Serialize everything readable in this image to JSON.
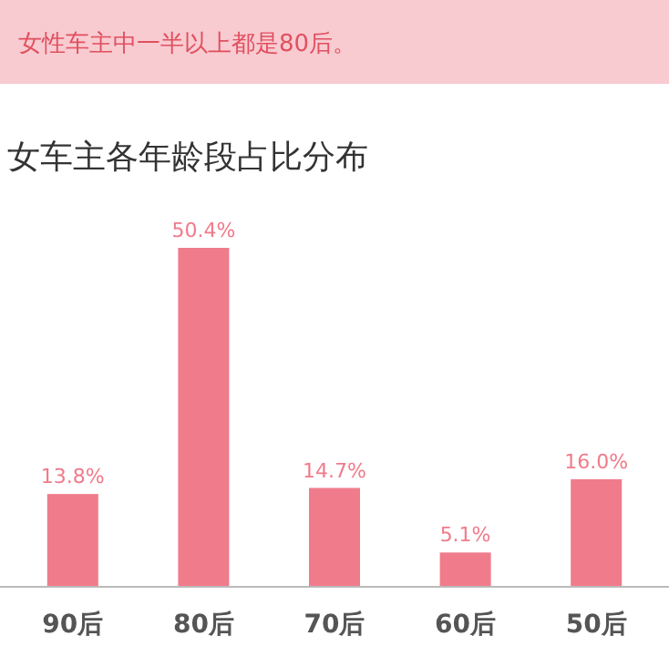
{
  "chart_data": {
    "type": "bar",
    "title": "女车主各年龄段占比分布",
    "subtitle": "女性车主中一半以上都是80后。",
    "categories": [
      "90后",
      "80后",
      "70后",
      "60后",
      "50后"
    ],
    "values": [
      13.8,
      50.4,
      14.7,
      5.1,
      16.0
    ],
    "value_labels": [
      "13.8%",
      "50.4%",
      "14.7%",
      "5.1%",
      "16.0%"
    ],
    "color": "#f07b8b"
  }
}
